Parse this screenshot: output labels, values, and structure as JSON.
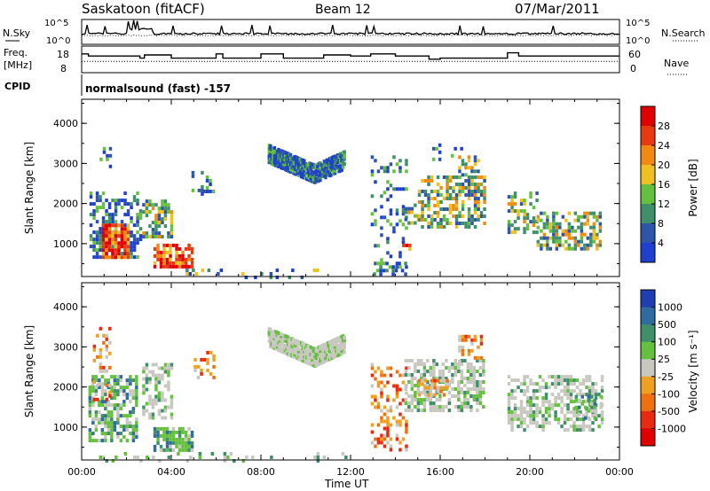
{
  "header": {
    "station": "Saskatoon (fitACF)",
    "beam": "Beam 12",
    "date": "07/Mar/2011"
  },
  "status_panel": {
    "nsky_label": "N.Sky",
    "nsearch_label": "N.Search",
    "noise_ticks": [
      "10^5",
      "10^0"
    ],
    "freq_label_1": "Freq.",
    "freq_label_2": "[MHz]",
    "freq_ticks": [
      "18",
      "8"
    ],
    "nave_label": "Nave",
    "nave_ticks": [
      "60",
      "0"
    ],
    "cpid_label": "CPID",
    "cpid_value": "normalsound (fast) -157"
  },
  "chart_data": [
    {
      "type": "heatmap",
      "name": "power",
      "xlabel": "",
      "ylabel": "Slant Range [km]",
      "x_range_hours": [
        0,
        24
      ],
      "ylim": [
        180,
        4600
      ],
      "y_ticks": [
        "1000",
        "2000",
        "3000",
        "4000"
      ],
      "colorbar_label": "Power [dB]",
      "colorbar_ticks": [
        "4",
        "8",
        "12",
        "16",
        "20",
        "24",
        "28"
      ],
      "colors": [
        "#1f3fcf",
        "#2f55a8",
        "#3f8f6a",
        "#66c040",
        "#f0c020",
        "#f08a10",
        "#e83a10",
        "#e00000"
      ]
    },
    {
      "type": "heatmap",
      "name": "velocity",
      "xlabel": "Time UT",
      "ylabel": "Slant Range [km]",
      "x_range_hours": [
        0,
        24
      ],
      "ylim": [
        180,
        4600
      ],
      "y_ticks": [
        "1000",
        "2000",
        "3000",
        "4000"
      ],
      "x_ticks": [
        "00:00",
        "04:00",
        "08:00",
        "12:00",
        "16:00",
        "20:00",
        "00:00"
      ],
      "colorbar_label": "Velocity [m s⁻¹]",
      "colorbar_ticks": [
        "1000",
        "500",
        "100",
        "25",
        "-25",
        "-100",
        "-500",
        "-1000"
      ],
      "colors": [
        "#1f3fb0",
        "#2f6aa0",
        "#3f8f6a",
        "#66c040",
        "#c8c8c0",
        "#f0a020",
        "#f07010",
        "#e82a10",
        "#e00000"
      ]
    }
  ],
  "echo_regions": [
    {
      "t0": 0.35,
      "t1": 2.6,
      "r0": 650,
      "r1": 2300,
      "pal": "low",
      "density": 0.55
    },
    {
      "t0": 0.9,
      "t1": 2.1,
      "r0": 620,
      "r1": 1500,
      "pal": "high",
      "density": 0.85
    },
    {
      "t0": 0.8,
      "t1": 1.3,
      "r0": 2900,
      "r1": 3500,
      "pal": "low",
      "density": 0.25
    },
    {
      "t0": 2.7,
      "t1": 4.0,
      "r0": 1200,
      "r1": 2100,
      "pal": "mid",
      "density": 0.6
    },
    {
      "t0": 3.2,
      "t1": 5.0,
      "r0": 430,
      "r1": 1000,
      "pal": "high",
      "density": 0.75
    },
    {
      "t0": 5.4,
      "t1": 5.9,
      "r0": 2300,
      "r1": 2700,
      "pal": "low",
      "density": 0.45
    },
    {
      "t0": 4.9,
      "t1": 5.4,
      "r0": 2200,
      "r1": 2900,
      "pal": "low",
      "density": 0.3
    },
    {
      "t0": 12.9,
      "t1": 14.5,
      "r0": 400,
      "r1": 3200,
      "pal": "low",
      "density": 0.2
    },
    {
      "t0": 14.4,
      "t1": 15.0,
      "r0": 1500,
      "r1": 2000,
      "pal": "mid",
      "density": 0.5
    },
    {
      "t0": 14.3,
      "t1": 14.7,
      "r0": 750,
      "r1": 1000,
      "pal": "high",
      "density": 0.6
    },
    {
      "t0": 15.0,
      "t1": 18.0,
      "r0": 1450,
      "r1": 2700,
      "pal": "mid",
      "density": 0.6
    },
    {
      "t0": 16.8,
      "t1": 17.7,
      "r0": 2700,
      "r1": 3200,
      "pal": "mid",
      "density": 0.35
    },
    {
      "t0": 15.5,
      "t1": 17.0,
      "r0": 3100,
      "r1": 3500,
      "pal": "low",
      "density": 0.2
    },
    {
      "t0": 19.0,
      "t1": 20.3,
      "r0": 1300,
      "r1": 2300,
      "pal": "mid",
      "density": 0.55
    },
    {
      "t0": 20.3,
      "t1": 23.2,
      "r0": 900,
      "r1": 1800,
      "pal": "mid",
      "density": 0.55
    },
    {
      "t0": 13.0,
      "t1": 14.5,
      "r0": 250,
      "r1": 550,
      "pal": "low",
      "density": 0.4
    }
  ],
  "arc_band": {
    "t0": 8.3,
    "t1": 11.7,
    "center_start": 3300,
    "center_min": 2800,
    "center_end": 3150,
    "halfwidth": 230,
    "pal": "low"
  },
  "velocity_regions": [
    {
      "t0": 0.3,
      "t1": 2.5,
      "r0": 650,
      "r1": 2300,
      "pal": "green",
      "density": 0.6
    },
    {
      "t0": 0.5,
      "t1": 1.2,
      "r0": 1700,
      "r1": 3500,
      "pal": "orange",
      "density": 0.3
    },
    {
      "t0": 2.7,
      "t1": 4.0,
      "r0": 1200,
      "r1": 2600,
      "pal": "grey",
      "density": 0.55
    },
    {
      "t0": 3.2,
      "t1": 5.0,
      "r0": 430,
      "r1": 1000,
      "pal": "green",
      "density": 0.7
    },
    {
      "t0": 5.0,
      "t1": 5.9,
      "r0": 2200,
      "r1": 2900,
      "pal": "orange",
      "density": 0.35
    },
    {
      "t0": 12.9,
      "t1": 14.5,
      "r0": 400,
      "r1": 2600,
      "pal": "orange",
      "density": 0.35
    },
    {
      "t0": 14.4,
      "t1": 18.0,
      "r0": 1400,
      "r1": 2700,
      "pal": "grey",
      "density": 0.65
    },
    {
      "t0": 15.0,
      "t1": 16.3,
      "r0": 1800,
      "r1": 2200,
      "pal": "orange",
      "density": 0.5
    },
    {
      "t0": 16.8,
      "t1": 17.8,
      "r0": 2600,
      "r1": 3300,
      "pal": "orange",
      "density": 0.45
    },
    {
      "t0": 19.0,
      "t1": 23.2,
      "r0": 900,
      "r1": 2300,
      "pal": "grey",
      "density": 0.55
    },
    {
      "t0": 22.0,
      "t1": 23.2,
      "r0": 1200,
      "r1": 1800,
      "pal": "green",
      "density": 0.4
    },
    {
      "t0": 0.5,
      "t1": 12.0,
      "r0": 180,
      "r1": 380,
      "pal": "grey",
      "density": 0.12
    }
  ],
  "freq_steps": [
    [
      0.0,
      16
    ],
    [
      0.3,
      15
    ],
    [
      2.6,
      14
    ],
    [
      2.8,
      15.5
    ],
    [
      4.0,
      14
    ],
    [
      6.0,
      16
    ],
    [
      6.3,
      14
    ],
    [
      8.0,
      16
    ],
    [
      9.0,
      14
    ],
    [
      10.8,
      15.5
    ],
    [
      12.0,
      15
    ],
    [
      12.9,
      16
    ],
    [
      14.0,
      15
    ],
    [
      15.5,
      13.5
    ],
    [
      16.0,
      14
    ],
    [
      19.0,
      16.5
    ],
    [
      19.5,
      15
    ],
    [
      23.0,
      15
    ]
  ],
  "nave_level": 25
}
